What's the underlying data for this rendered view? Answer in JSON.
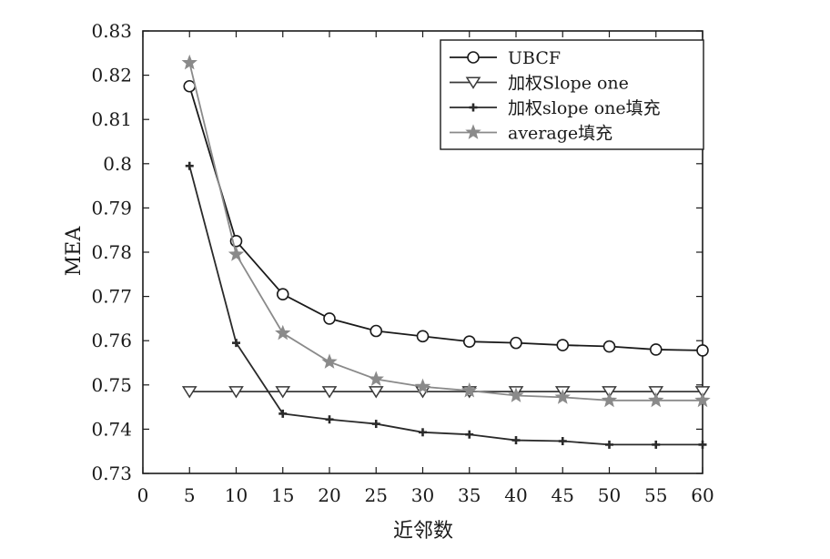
{
  "chart_data": {
    "type": "line",
    "title": "",
    "xlabel": "近邻数",
    "ylabel": "MEA",
    "xlim": [
      0,
      60
    ],
    "ylim": [
      0.73,
      0.83
    ],
    "x_ticks": [
      "0",
      "5",
      "10",
      "15",
      "20",
      "25",
      "30",
      "35",
      "40",
      "45",
      "50",
      "55",
      "60"
    ],
    "y_ticks": [
      "0.73",
      "0.74",
      "0.75",
      "0.76",
      "0.77",
      "0.78",
      "0.79",
      "0.8",
      "0.81",
      "0.82",
      "0.83"
    ],
    "grid": false,
    "legend_position": "top-right",
    "x": [
      5,
      10,
      15,
      20,
      25,
      30,
      35,
      40,
      45,
      50,
      55,
      60
    ],
    "series": [
      {
        "name": "UBCF",
        "marker": "circle",
        "color": "#1a1a1a",
        "values": [
          0.8175,
          0.7825,
          0.7705,
          0.765,
          0.7622,
          0.761,
          0.7598,
          0.7595,
          0.759,
          0.7587,
          0.758,
          0.7578
        ]
      },
      {
        "name": "加权Slope one",
        "marker": "triangle-down",
        "color": "#3a3a3a",
        "values": [
          0.7485,
          0.7485,
          0.7485,
          0.7485,
          0.7485,
          0.7485,
          0.7485,
          0.7485,
          0.7485,
          0.7485,
          0.7485,
          0.7485
        ]
      },
      {
        "name": "加权slope one填充",
        "marker": "plus",
        "color": "#2a2a2a",
        "values": [
          0.7995,
          0.7595,
          0.7435,
          0.7422,
          0.7412,
          0.7393,
          0.7388,
          0.7375,
          0.7373,
          0.7365,
          0.7365,
          0.7365
        ]
      },
      {
        "name": "average填充",
        "marker": "star",
        "color": "#8a8a8a",
        "values": [
          0.8228,
          0.7795,
          0.7617,
          0.7552,
          0.7513,
          0.7496,
          0.7487,
          0.7476,
          0.7472,
          0.7465,
          0.7465,
          0.7465
        ]
      }
    ]
  }
}
